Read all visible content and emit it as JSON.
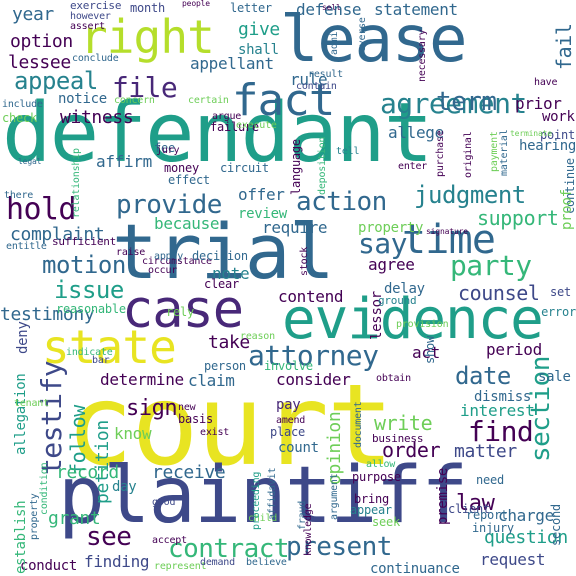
{
  "palette": {
    "background": "#ffffff",
    "yellow": "#e8e422",
    "lime": "#b5de2b",
    "green": "#6ece58",
    "teal_green": "#35b779",
    "teal": "#1f9e89",
    "cyan_blue": "#26828e",
    "blue": "#31688e",
    "indigo": "#3e4989",
    "purple": "#482878",
    "dark_purple": "#440154"
  },
  "words": [
    {
      "text": "court",
      "color": "#e8e422"
    },
    {
      "text": "plaintiff",
      "color": "#3e4989"
    },
    {
      "text": "defendant",
      "color": "#1f9e89"
    },
    {
      "text": "trial",
      "color": "#31688e"
    },
    {
      "text": "lease",
      "color": "#31688e"
    },
    {
      "text": "evidence",
      "color": "#1f9e89"
    },
    {
      "text": "case",
      "color": "#482878"
    },
    {
      "text": "state",
      "color": "#e8e422"
    },
    {
      "text": "right",
      "color": "#b5de2b"
    },
    {
      "text": "fact",
      "color": "#31688e"
    },
    {
      "text": "time",
      "color": "#31688e"
    },
    {
      "text": "attorney",
      "color": "#31688e"
    },
    {
      "text": "contract",
      "color": "#35b779"
    },
    {
      "text": "present",
      "color": "#31688e"
    },
    {
      "text": "agreement",
      "color": "#26828e"
    },
    {
      "text": "provide",
      "color": "#31688e"
    },
    {
      "text": "action",
      "color": "#31688e"
    },
    {
      "text": "judgment",
      "color": "#26828e"
    },
    {
      "text": "hold",
      "color": "#440154"
    },
    {
      "text": "party",
      "color": "#35b779"
    },
    {
      "text": "say",
      "color": "#31688e"
    },
    {
      "text": "appeal",
      "color": "#26828e"
    },
    {
      "text": "file",
      "color": "#482878"
    },
    {
      "text": "motion",
      "color": "#31688e"
    },
    {
      "text": "issue",
      "color": "#1f9e89"
    },
    {
      "text": "testify",
      "color": "#3e4989"
    },
    {
      "text": "find",
      "color": "#440154"
    },
    {
      "text": "see",
      "color": "#440154"
    },
    {
      "text": "date",
      "color": "#31688e"
    },
    {
      "text": "section",
      "color": "#1f9e89"
    },
    {
      "text": "term",
      "color": "#31688e"
    },
    {
      "text": "witness",
      "color": "#440154"
    },
    {
      "text": "support",
      "color": "#35b779"
    },
    {
      "text": "complaint",
      "color": "#31688e"
    },
    {
      "text": "follow",
      "color": "#1f9e89"
    },
    {
      "text": "petition",
      "color": "#1f9e89"
    },
    {
      "text": "testimony",
      "color": "#31688e"
    },
    {
      "text": "order",
      "color": "#440154"
    },
    {
      "text": "write",
      "color": "#6ece58"
    },
    {
      "text": "counsel",
      "color": "#3e4989"
    },
    {
      "text": "question",
      "color": "#1f9e89"
    },
    {
      "text": "request",
      "color": "#3e4989"
    },
    {
      "text": "continuance",
      "color": "#31688e"
    },
    {
      "text": "finding",
      "color": "#3e4989"
    },
    {
      "text": "charge",
      "color": "#31688e"
    },
    {
      "text": "law",
      "color": "#440154"
    },
    {
      "text": "matter",
      "color": "#3e4989"
    },
    {
      "text": "opinion",
      "color": "#6ece58"
    },
    {
      "text": "receive",
      "color": "#31688e"
    },
    {
      "text": "sign",
      "color": "#440154"
    },
    {
      "text": "know",
      "color": "#6ece58"
    },
    {
      "text": "claim",
      "color": "#31688e"
    },
    {
      "text": "determine",
      "color": "#440154"
    },
    {
      "text": "consider",
      "color": "#440154"
    },
    {
      "text": "take",
      "color": "#440154"
    },
    {
      "text": "record",
      "color": "#35b779"
    },
    {
      "text": "grant",
      "color": "#35b779"
    },
    {
      "text": "note",
      "color": "#26828e"
    },
    {
      "text": "because",
      "color": "#35b779"
    },
    {
      "text": "require",
      "color": "#31688e"
    },
    {
      "text": "contend",
      "color": "#440154"
    },
    {
      "text": "year",
      "color": "#31688e"
    },
    {
      "text": "option",
      "color": "#440154"
    },
    {
      "text": "lessee",
      "color": "#440154"
    },
    {
      "text": "give",
      "color": "#1f9e89"
    },
    {
      "text": "shall",
      "color": "#26828e"
    },
    {
      "text": "appellant",
      "color": "#31688e"
    },
    {
      "text": "rule",
      "color": "#31688e"
    },
    {
      "text": "notice",
      "color": "#31688e"
    },
    {
      "text": "allege",
      "color": "#31688e"
    },
    {
      "text": "affirm",
      "color": "#31688e"
    },
    {
      "text": "offer",
      "color": "#31688e"
    },
    {
      "text": "review",
      "color": "#35b779"
    },
    {
      "text": "fail",
      "color": "#31688e"
    },
    {
      "text": "defense",
      "color": "#31688e"
    },
    {
      "text": "statement",
      "color": "#31688e"
    },
    {
      "text": "prior",
      "color": "#440154"
    },
    {
      "text": "agree",
      "color": "#440154"
    },
    {
      "text": "delay",
      "color": "#31688e"
    },
    {
      "text": "property",
      "color": "#6ece58"
    },
    {
      "text": "deny",
      "color": "#3e4989"
    },
    {
      "text": "period",
      "color": "#440154"
    },
    {
      "text": "act",
      "color": "#440154"
    },
    {
      "text": "dismiss",
      "color": "#31688e"
    },
    {
      "text": "sale",
      "color": "#31688e"
    },
    {
      "text": "interest",
      "color": "#1f9e89"
    },
    {
      "text": "pay",
      "color": "#482878"
    },
    {
      "text": "count",
      "color": "#31688e"
    },
    {
      "text": "day",
      "color": "#26828e"
    },
    {
      "text": "conduct",
      "color": "#440154"
    },
    {
      "text": "establish",
      "color": "#35b779"
    },
    {
      "text": "allegation",
      "color": "#1f9e89"
    },
    {
      "text": "lessor",
      "color": "#440154"
    },
    {
      "text": "reasonable",
      "color": "#35b779"
    },
    {
      "text": "month",
      "color": "#3e4989"
    },
    {
      "text": "exercise",
      "color": "#3e4989"
    },
    {
      "text": "letter",
      "color": "#31688e"
    },
    {
      "text": "work",
      "color": "#440154"
    },
    {
      "text": "hearing",
      "color": "#31688e"
    },
    {
      "text": "point",
      "color": "#3e4989"
    },
    {
      "text": "continue",
      "color": "#31688e"
    },
    {
      "text": "proof",
      "color": "#6ece58"
    },
    {
      "text": "set",
      "color": "#3e4989"
    },
    {
      "text": "error",
      "color": "#26828e"
    },
    {
      "text": "second",
      "color": "#31688e"
    },
    {
      "text": "premise",
      "color": "#440154"
    },
    {
      "text": "client",
      "color": "#3e4989"
    },
    {
      "text": "need",
      "color": "#31688e"
    },
    {
      "text": "report",
      "color": "#31688e"
    },
    {
      "text": "injury",
      "color": "#31688e"
    },
    {
      "text": "bring",
      "color": "#440154"
    },
    {
      "text": "appear",
      "color": "#26828e"
    },
    {
      "text": "seek",
      "color": "#6ece58"
    },
    {
      "text": "purpose",
      "color": "#440154"
    },
    {
      "text": "allow",
      "color": "#35b779"
    },
    {
      "text": "business",
      "color": "#440154"
    },
    {
      "text": "ground",
      "color": "#26828e"
    },
    {
      "text": "relationship",
      "color": "#35b779"
    },
    {
      "text": "sufficient",
      "color": "#440154"
    },
    {
      "text": "raise",
      "color": "#440154"
    },
    {
      "text": "circumstance",
      "color": "#440154"
    },
    {
      "text": "entitle",
      "color": "#31688e"
    },
    {
      "text": "there",
      "color": "#31688e"
    },
    {
      "text": "include",
      "color": "#31688e"
    },
    {
      "text": "check",
      "color": "#6ece58"
    },
    {
      "text": "however",
      "color": "#3e4989"
    },
    {
      "text": "assert",
      "color": "#440154"
    },
    {
      "text": "conclude",
      "color": "#31688e"
    },
    {
      "text": "concern",
      "color": "#6ece58"
    },
    {
      "text": "argue",
      "color": "#440154"
    },
    {
      "text": "failure",
      "color": "#440154"
    },
    {
      "text": "certain",
      "color": "#6ece58"
    },
    {
      "text": "result",
      "color": "#31688e"
    },
    {
      "text": "contain",
      "color": "#3e4989"
    },
    {
      "text": "necessary",
      "color": "#440154"
    },
    {
      "text": "admit",
      "color": "#31688e"
    },
    {
      "text": "reverse",
      "color": "#31688e"
    },
    {
      "text": "execute",
      "color": "#6ece58"
    },
    {
      "text": "language",
      "color": "#440154"
    },
    {
      "text": "deposition",
      "color": "#35b779"
    },
    {
      "text": "tell",
      "color": "#26828e"
    },
    {
      "text": "enter",
      "color": "#440154"
    },
    {
      "text": "purchase",
      "color": "#440154"
    },
    {
      "text": "original",
      "color": "#440154"
    },
    {
      "text": "payment",
      "color": "#6ece58"
    },
    {
      "text": "material",
      "color": "#31688e"
    },
    {
      "text": "terminate",
      "color": "#6ece58"
    },
    {
      "text": "signature",
      "color": "#440154"
    },
    {
      "text": "stock",
      "color": "#440154"
    },
    {
      "text": "effect",
      "color": "#31688e"
    },
    {
      "text": "money",
      "color": "#440154"
    },
    {
      "text": "circuit",
      "color": "#31688e"
    },
    {
      "text": "fee",
      "color": "#31688e"
    },
    {
      "text": "jury",
      "color": "#440154"
    },
    {
      "text": "apply",
      "color": "#31688e"
    },
    {
      "text": "occur",
      "color": "#440154"
    },
    {
      "text": "decision",
      "color": "#31688e"
    },
    {
      "text": "clear",
      "color": "#440154"
    },
    {
      "text": "rely",
      "color": "#6ece58"
    },
    {
      "text": "involve",
      "color": "#35b779"
    },
    {
      "text": "reason",
      "color": "#6ece58"
    },
    {
      "text": "person",
      "color": "#31688e"
    },
    {
      "text": "indicate",
      "color": "#35b779"
    },
    {
      "text": "bar",
      "color": "#3e4989"
    },
    {
      "text": "provision",
      "color": "#6ece58"
    },
    {
      "text": "obtain",
      "color": "#440154"
    },
    {
      "text": "tenant",
      "color": "#6ece58"
    },
    {
      "text": "show",
      "color": "#31688e"
    },
    {
      "text": "amend",
      "color": "#440154"
    },
    {
      "text": "new",
      "color": "#440154"
    },
    {
      "text": "basis",
      "color": "#440154"
    },
    {
      "text": "exist",
      "color": "#440154"
    },
    {
      "text": "place",
      "color": "#3e4989"
    },
    {
      "text": "document",
      "color": "#31688e"
    },
    {
      "text": "argument",
      "color": "#31688e"
    },
    {
      "text": "condition",
      "color": "#35b779"
    },
    {
      "text": "property",
      "color": "#31688e"
    },
    {
      "text": "child",
      "color": "#6ece58"
    },
    {
      "text": "good",
      "color": "#3e4989"
    },
    {
      "text": "proceeding",
      "color": "#1f9e89"
    },
    {
      "text": "affidavit",
      "color": "#31688e"
    },
    {
      "text": "fraud",
      "color": "#31688e"
    },
    {
      "text": "knowledge",
      "color": "#440154"
    },
    {
      "text": "accept",
      "color": "#440154"
    },
    {
      "text": "represent",
      "color": "#6ece58"
    },
    {
      "text": "demand",
      "color": "#3e4989"
    },
    {
      "text": "believe",
      "color": "#31688e"
    },
    {
      "text": "people",
      "color": "#440154"
    },
    {
      "text": "sell",
      "color": "#440154"
    },
    {
      "text": "legal",
      "color": "#31688e"
    },
    {
      "text": "have",
      "color": "#440154"
    }
  ]
}
